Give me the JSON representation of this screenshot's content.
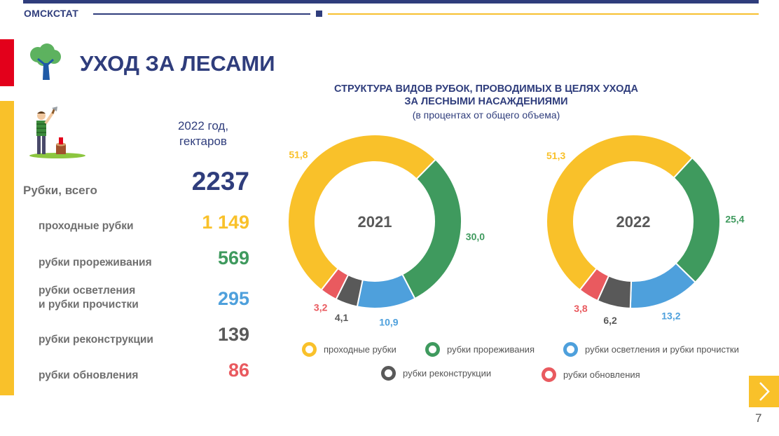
{
  "header": {
    "brand": "ОМСКСТАТ",
    "title": "УХОД ЗА ЛЕСАМИ"
  },
  "summary": {
    "year_unit_line1": "2022 год,",
    "year_unit_line2": "гектаров",
    "total_label": "Рубки, всего",
    "total_value": "2237",
    "rows": [
      {
        "label": "проходные рубки",
        "value": "1 149"
      },
      {
        "label": "рубки прореживания",
        "value": "569"
      },
      {
        "label_line1": "рубки осветления",
        "label_line2": "и  рубки прочистки",
        "value": "295"
      },
      {
        "label": "рубки реконструкции",
        "value": "139"
      },
      {
        "label": "рубки обновления",
        "value": "86"
      }
    ]
  },
  "chart_title_line1": "СТРУКТУРА ВИДОВ РУБОК, ПРОВОДИМЫХ В ЦЕЛЯХ УХОДА",
  "chart_title_line2": "ЗА ЛЕСНЫМИ НАСАЖДЕНИЯМИ",
  "chart_subtitle": "(в процентах от общего объема)",
  "colors": {
    "yellow": "#f9c12a",
    "green": "#3f9a5e",
    "blue": "#4ea0dc",
    "gray": "#595959",
    "red": "#e95a5f",
    "navy": "#2f3d7c"
  },
  "chart_data": [
    {
      "type": "pie",
      "title": "2021",
      "categories": [
        "проходные рубки",
        "рубки прореживания",
        "рубки осветления и рубки прочистки",
        "рубки реконструкции",
        "рубки обновления"
      ],
      "values": [
        51.8,
        30.0,
        10.9,
        4.1,
        3.2
      ],
      "labels": [
        "51,8",
        "30,0",
        "10,9",
        "4,1",
        "3,2"
      ]
    },
    {
      "type": "pie",
      "title": "2022",
      "categories": [
        "проходные рубки",
        "рубки прореживания",
        "рубки осветления и рубки прочистки",
        "рубки реконструкции",
        "рубки обновления"
      ],
      "values": [
        51.3,
        25.4,
        13.2,
        6.2,
        3.8
      ],
      "labels": [
        "51,3",
        "25,4",
        "13,2",
        "6,2",
        "3,8"
      ]
    }
  ],
  "legend": [
    {
      "label": "проходные рубки",
      "color": "#f9c12a"
    },
    {
      "label": "рубки прореживания",
      "color": "#3f9a5e"
    },
    {
      "label": "рубки осветления и рубки прочистки",
      "color": "#4ea0dc"
    },
    {
      "label": "рубки реконструкции",
      "color": "#595959"
    },
    {
      "label": "рубки обновления",
      "color": "#e95a5f"
    }
  ],
  "page_number": "7",
  "icons": {
    "tree": "tree-icon",
    "worker": "lumberjack-icon",
    "next": "chevron-right-icon"
  }
}
